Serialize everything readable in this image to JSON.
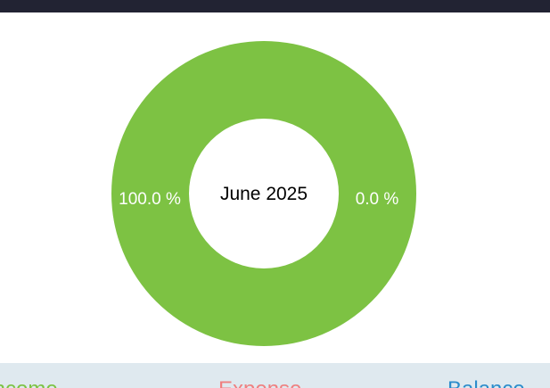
{
  "colors": {
    "topbar": "#222333",
    "income": "#7dc243",
    "expense": "#ef8080",
    "balance": "#2b8ccb",
    "summary_bg": "#dfe9ef"
  },
  "chart_data": {
    "type": "pie",
    "center_label": "June 2025",
    "slices": [
      {
        "value": 100.0,
        "label": "100.0 %",
        "color": "#7dc243"
      },
      {
        "value": 0.0,
        "label": "0.0 %",
        "color": "#ef8080"
      }
    ]
  },
  "summary": {
    "income_label": "Income",
    "expense_label": "Expense",
    "balance_label": "Balance"
  }
}
